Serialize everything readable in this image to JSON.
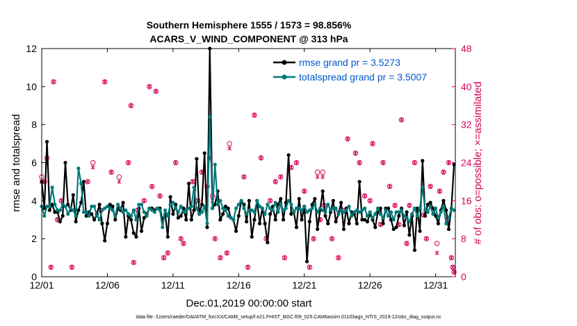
{
  "chart_data": {
    "type": "line",
    "title_line1": "Southern Hemisphere 1555 / 1573 = 98.856%",
    "title_line2": "ACARS_V_WIND_COMPONENT @ 313 hPa",
    "xlabel": "Dec.01,2019 00:00:00 start",
    "ylabel_left": "rmse and totalspread",
    "ylabel_right": "# of obs: o=possible; ×=assimilated",
    "footnote": "data file: /Users/raeder/DAI/ATM_forcXX/CAM6_setup/f.e21.FHIST_BGC.f09_025.CAM6assim.011/Diags_NTrS_2019-12/obs_diag_output.nc",
    "xlim": [
      0,
      31.5
    ],
    "ylim_left": [
      0,
      12
    ],
    "ylim_right": [
      0,
      48
    ],
    "xticks": [
      0,
      5,
      10,
      15,
      20,
      25,
      30
    ],
    "xticklabels": [
      "12/01",
      "12/06",
      "12/11",
      "12/16",
      "12/21",
      "12/26",
      "12/31"
    ],
    "yticks_left": [
      0,
      2,
      4,
      6,
      8,
      10,
      12
    ],
    "yticks_right": [
      0,
      8,
      16,
      24,
      32,
      40,
      48
    ],
    "colors": {
      "rmse": "#000000",
      "spread": "#007a7a",
      "obs": "#d6005a",
      "legend_text": "#0055cc"
    },
    "series": [
      {
        "name": "rmse grand pr = 3.5273",
        "values": [
          5.0,
          3.6,
          7.1,
          3.5,
          3.8,
          3.4,
          3.4,
          2.9,
          3.2,
          6.0,
          3.8,
          3.5,
          4.3,
          2.9,
          3.5,
          3.9,
          5.0,
          3.2,
          3.4,
          3.3,
          3.0,
          3.3,
          3.8,
          2.8,
          1.9,
          2.8,
          3.8,
          3.7,
          3.0,
          3.6,
          3.5,
          3.9,
          2.1,
          3.2,
          3.0,
          2.3,
          2.1,
          3.6,
          2.4,
          3.1,
          3.3,
          3.6,
          3.6,
          3.5,
          3.6,
          3.6,
          3.0,
          3.3,
          2.1,
          4.2,
          3.3,
          3.8,
          3.1,
          3.2,
          3.6,
          3.0,
          4.9,
          3.0,
          3.5,
          6.2,
          3.3,
          3.8,
          6.5,
          2.6,
          12.0,
          3.6,
          3.8,
          4.5,
          3.0,
          3.3,
          3.7,
          3.6,
          3.1,
          3.0,
          2.4,
          3.2,
          4.0,
          3.8,
          2.9,
          4.0,
          2.1,
          3.0,
          4.0,
          2.8,
          3.6,
          2.8,
          1.8,
          3.3,
          3.7,
          3.0,
          3.8,
          4.1,
          3.0,
          3.9,
          6.4,
          3.3,
          3.4,
          2.6,
          4.1,
          3.0,
          3.7,
          0.8,
          2.9,
          3.8,
          4.1,
          2.5,
          3.5,
          4.5,
          3.2,
          2.8,
          3.4,
          4.0,
          2.9,
          3.3,
          3.9,
          2.5,
          3.6,
          2.8,
          3.4,
          3.3,
          2.8,
          5.0,
          3.0,
          3.0,
          2.9,
          3.3,
          3.0,
          2.6,
          3.4,
          3.6,
          2.8,
          3.6,
          3.6,
          3.0,
          2.5,
          2.6,
          3.2,
          3.6,
          2.7,
          3.4,
          2.2,
          3.2,
          1.4,
          3.6,
          2.4,
          6.1,
          3.2,
          3.8,
          3.9,
          3.6,
          3.2,
          2.8,
          3.5,
          4.0,
          3.5,
          2.5,
          3.6,
          5.9
        ],
        "x_start": 0.0,
        "x_step": 0.2
      },
      {
        "name": "totalspread grand pr = 3.5007",
        "values": [
          3.7,
          3.2,
          3.7,
          3.7,
          4.7,
          3.8,
          3.5,
          3.5,
          3.8,
          3.7,
          3.3,
          3.6,
          3.5,
          3.2,
          5.7,
          4.9,
          3.4,
          3.4,
          3.2,
          3.7,
          3.7,
          3.2,
          3.0,
          3.5,
          3.6,
          3.7,
          3.6,
          3.5,
          3.2,
          3.8,
          3.6,
          3.4,
          3.5,
          3.3,
          3.2,
          3.5,
          3.0,
          3.8,
          3.8,
          3.4,
          3.2,
          3.6,
          3.5,
          3.4,
          3.6,
          3.5,
          2.6,
          3.5,
          3.2,
          3.8,
          3.9,
          3.6,
          3.4,
          3.7,
          3.4,
          3.5,
          3.6,
          3.7,
          4.7,
          3.6,
          3.3,
          3.4,
          3.7,
          2.8,
          8.4,
          3.6,
          5.9,
          3.8,
          4.0,
          3.6,
          3.5,
          3.2,
          3.1,
          3.0,
          3.6,
          3.8,
          4.0,
          3.6,
          3.3,
          3.5,
          3.5,
          3.4,
          4.0,
          3.7,
          3.6,
          3.3,
          3.8,
          3.6,
          3.5,
          3.9,
          3.4,
          3.8,
          3.5,
          3.6,
          4.0,
          3.8,
          3.4,
          3.6,
          3.6,
          3.5,
          3.7,
          3.4,
          3.5,
          3.6,
          3.8,
          3.4,
          3.6,
          3.5,
          3.4,
          3.8,
          3.5,
          3.6,
          3.6,
          3.3,
          3.5,
          3.4,
          3.5,
          3.7,
          3.2,
          3.4,
          3.5,
          3.4,
          3.5,
          3.6,
          3.2,
          3.4,
          3.1,
          3.3,
          3.6,
          3.3,
          3.1,
          3.5,
          3.2,
          3.4,
          3.0,
          3.4,
          3.4,
          3.5,
          3.2,
          3.1,
          2.9,
          3.3,
          3.6,
          3.2,
          3.6,
          4.7,
          3.5,
          3.4,
          3.7,
          3.3,
          3.6,
          3.1,
          3.4,
          3.7,
          2.8,
          3.1,
          3.6,
          3.5
        ],
        "x_start": 0.0,
        "x_step": 0.2
      }
    ],
    "obs_counts": {
      "possible_x": [
        0.0,
        0.2,
        0.4,
        0.7,
        0.9,
        1.5,
        2.3,
        3.5,
        4.5,
        4.8,
        5.3,
        5.9,
        6.6,
        7.0,
        7.3,
        7.8,
        8.2,
        8.7,
        9.3,
        9.6,
        10.2,
        10.8,
        11.5,
        12.2,
        12.8,
        13.2,
        13.6,
        14.1,
        14.3,
        15.7,
        16.2,
        17.1,
        17.8,
        18.5,
        19.4,
        20.0,
        20.7,
        21.0,
        21.4,
        22.1,
        22.6,
        23.3,
        23.9,
        24.6,
        25.2,
        25.8,
        26.5,
        27.2,
        27.8,
        28.4,
        29.1,
        29.6,
        30.1,
        30.6,
        31.0,
        31.3,
        31.4,
        1.2,
        3.9,
        6.8,
        8.4,
        10.6,
        11.9,
        13.0,
        15.4,
        16.7,
        18.2,
        19.0,
        20.4,
        21.2,
        21.5,
        22.9,
        24.2,
        25.0,
        26.0,
        26.9,
        28.0,
        29.3,
        30.3,
        30.9,
        17.4,
        12.6,
        9.0,
        27.4,
        31.2
      ],
      "possible_y": [
        21,
        20,
        25,
        2,
        41,
        16,
        2,
        20,
        14,
        41,
        22,
        21,
        24,
        3,
        14,
        16,
        40,
        39,
        4,
        5,
        24,
        7,
        20,
        22,
        25,
        8,
        4,
        5,
        28,
        2,
        34,
        8,
        20,
        4,
        24,
        18,
        8,
        22,
        22,
        8,
        4,
        29,
        26,
        17,
        28,
        11,
        19,
        11,
        7,
        24,
        13,
        19,
        7,
        22,
        24,
        2,
        1,
        12,
        24,
        36,
        19,
        8,
        16,
        17,
        21,
        25,
        21,
        23,
        2,
        12,
        15,
        14,
        24,
        16,
        24,
        15,
        15,
        8,
        18,
        12,
        16,
        19,
        17,
        33,
        4
      ],
      "assimilated_x": [
        0.0,
        0.2,
        0.4,
        0.7,
        0.9,
        1.5,
        2.3,
        3.5,
        4.5,
        4.8,
        5.3,
        5.9,
        6.6,
        7.0,
        7.3,
        7.8,
        8.2,
        8.7,
        9.3,
        9.6,
        10.2,
        10.8,
        11.5,
        12.2,
        12.8,
        13.2,
        13.6,
        14.1,
        14.3,
        15.7,
        16.2,
        17.1,
        17.8,
        18.5,
        19.4,
        20.0,
        20.7,
        21.0,
        21.4,
        22.1,
        22.6,
        23.3,
        23.9,
        24.6,
        25.2,
        25.8,
        26.5,
        27.2,
        27.8,
        28.4,
        29.1,
        29.6,
        30.1,
        30.6,
        31.0,
        31.3,
        31.4,
        1.2,
        3.9,
        6.8,
        8.4,
        10.6,
        11.9,
        13.0,
        15.4,
        16.7,
        18.2,
        19.0,
        20.4,
        21.2,
        21.5,
        22.9,
        24.2,
        25.0,
        26.0,
        26.9,
        28.0,
        29.3,
        30.3,
        30.9,
        17.4,
        12.6,
        9.0,
        27.4,
        31.2
      ],
      "assimilated_y": [
        20,
        20,
        24,
        2,
        41,
        16,
        2,
        20,
        14,
        41,
        22,
        20,
        24,
        3,
        14,
        16,
        40,
        39,
        4,
        5,
        24,
        7,
        20,
        22,
        25,
        8,
        4,
        5,
        27,
        2,
        34,
        8,
        20,
        4,
        24,
        18,
        8,
        21,
        21,
        8,
        4,
        29,
        26,
        17,
        28,
        11,
        19,
        11,
        7,
        24,
        13,
        19,
        5,
        22,
        24,
        2,
        1,
        12,
        23,
        36,
        19,
        8,
        16,
        16,
        21,
        25,
        21,
        23,
        2,
        12,
        15,
        14,
        24,
        16,
        24,
        15,
        15,
        8,
        18,
        12,
        16,
        19,
        17,
        33,
        4
      ]
    },
    "legend_position": "top-right",
    "grid": false
  }
}
